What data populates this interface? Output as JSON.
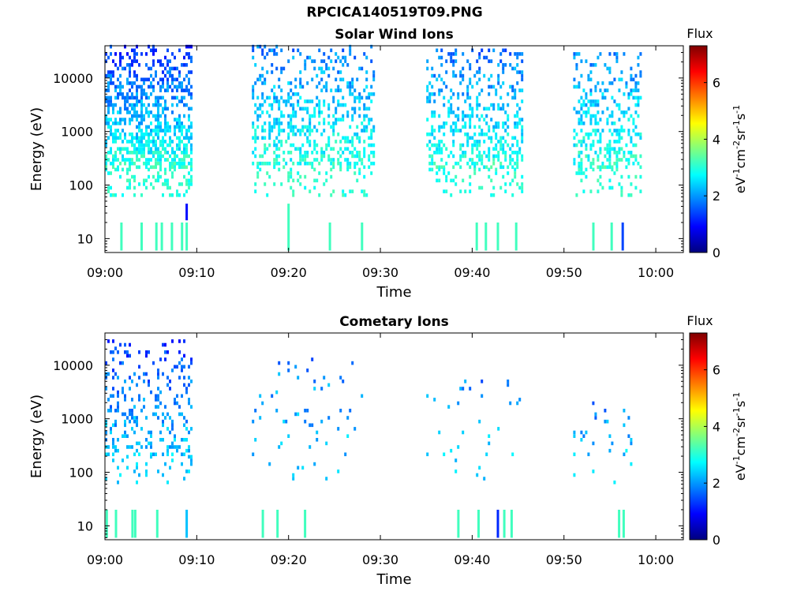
{
  "figure": {
    "title": "RPCICA140519T09.PNG"
  },
  "colorscale": {
    "name": "jet",
    "stops": [
      "#00007f",
      "#0000ff",
      "#007fff",
      "#00ffff",
      "#7fff7f",
      "#ffff00",
      "#ff7f00",
      "#ff0000",
      "#7f0000"
    ]
  },
  "chart_data": [
    {
      "type": "heatmap",
      "title": "Solar Wind Ions",
      "xlabel": "Time",
      "ylabel": "Energy (eV)",
      "y_scale": "log",
      "xlim": [
        "09:00",
        "10:03"
      ],
      "ylim": [
        5.5,
        40000
      ],
      "x_ticks": [
        "09:00",
        "09:10",
        "09:20",
        "09:30",
        "09:40",
        "09:50",
        "10:00"
      ],
      "y_ticks": [
        "10",
        "100",
        "1000",
        "10000"
      ],
      "colorbar": {
        "label_top": "Flux",
        "label": "eV-1cm-2sr-1s-1",
        "range": [
          0,
          7.3
        ],
        "ticks": [
          "0",
          "2",
          "4",
          "6"
        ]
      },
      "bursts": [
        {
          "start": "09:00",
          "end": "09:09",
          "max_energy": 38000,
          "high_flux": 1.2,
          "low_flux": 3.0,
          "fill": 0.65
        },
        {
          "start": "09:16",
          "end": "09:29",
          "max_energy": 36000,
          "high_flux": 1.8,
          "low_flux": 3.0,
          "fill": 0.38
        },
        {
          "start": "09:35",
          "end": "09:45",
          "max_energy": 32000,
          "high_flux": 1.7,
          "low_flux": 3.0,
          "fill": 0.4
        },
        {
          "start": "09:51",
          "end": "09:58",
          "max_energy": 30000,
          "high_flux": 1.8,
          "low_flux": 3.0,
          "fill": 0.4
        }
      ],
      "lines": [
        {
          "t": "09:01.8",
          "from": 6,
          "to": 20,
          "flux": 3.2
        },
        {
          "t": "09:04.0",
          "from": 6,
          "to": 20,
          "flux": 3.2
        },
        {
          "t": "09:05.6",
          "from": 6,
          "to": 20,
          "flux": 3.2
        },
        {
          "t": "09:06.2",
          "from": 6,
          "to": 20,
          "flux": 3.2
        },
        {
          "t": "09:07.3",
          "from": 6,
          "to": 20,
          "flux": 3.2
        },
        {
          "t": "09:08.4",
          "from": 6,
          "to": 20,
          "flux": 3.2
        },
        {
          "t": "09:08.9",
          "from": 6,
          "to": 20,
          "flux": 3.2
        },
        {
          "t": "09:08.9",
          "from": 22,
          "to": 45,
          "flux": 1.0
        },
        {
          "t": "09:20.0",
          "from": 6,
          "to": 45,
          "flux": 3.2
        },
        {
          "t": "09:24.5",
          "from": 6,
          "to": 20,
          "flux": 3.2
        },
        {
          "t": "09:28.0",
          "from": 6,
          "to": 20,
          "flux": 3.2
        },
        {
          "t": "09:40.5",
          "from": 6,
          "to": 20,
          "flux": 3.2
        },
        {
          "t": "09:41.5",
          "from": 6,
          "to": 20,
          "flux": 3.2
        },
        {
          "t": "09:42.8",
          "from": 6,
          "to": 20,
          "flux": 3.2
        },
        {
          "t": "09:44.8",
          "from": 6,
          "to": 20,
          "flux": 3.2
        },
        {
          "t": "09:53.2",
          "from": 6,
          "to": 20,
          "flux": 3.2
        },
        {
          "t": "09:55.2",
          "from": 6,
          "to": 20,
          "flux": 3.2
        },
        {
          "t": "09:56.4",
          "from": 6,
          "to": 20,
          "flux": 1.4
        }
      ]
    },
    {
      "type": "heatmap",
      "title": "Cometary Ions",
      "xlabel": "Time",
      "ylabel": "Energy (eV)",
      "y_scale": "log",
      "xlim": [
        "09:00",
        "10:03"
      ],
      "ylim": [
        5.5,
        40000
      ],
      "x_ticks": [
        "09:00",
        "09:10",
        "09:20",
        "09:30",
        "09:40",
        "09:50",
        "10:00"
      ],
      "y_ticks": [
        "10",
        "100",
        "1000",
        "10000"
      ],
      "colorbar": {
        "label_top": "Flux",
        "label": "eV-1cm-2sr-1s-1",
        "range": [
          0,
          7.3
        ],
        "ticks": [
          "0",
          "2",
          "4",
          "6"
        ]
      },
      "bursts": [
        {
          "start": "09:00",
          "end": "09:09",
          "max_energy": 30000,
          "high_flux": 1.3,
          "low_flux": 2.4,
          "fill": 0.3
        },
        {
          "start": "09:16",
          "end": "09:28",
          "max_energy": 12000,
          "high_flux": 1.8,
          "low_flux": 2.4,
          "fill": 0.07
        },
        {
          "start": "09:35",
          "end": "09:45",
          "max_energy": 6000,
          "high_flux": 1.8,
          "low_flux": 2.4,
          "fill": 0.05
        },
        {
          "start": "09:51",
          "end": "09:57",
          "max_energy": 2000,
          "high_flux": 1.8,
          "low_flux": 2.4,
          "fill": 0.08
        }
      ],
      "lines": [
        {
          "t": "09:00.2",
          "from": 6,
          "to": 20,
          "flux": 3.2
        },
        {
          "t": "09:01.2",
          "from": 6,
          "to": 20,
          "flux": 3.2
        },
        {
          "t": "09:03.0",
          "from": 6,
          "to": 20,
          "flux": 3.2
        },
        {
          "t": "09:03.3",
          "from": 6,
          "to": 20,
          "flux": 3.2
        },
        {
          "t": "09:05.7",
          "from": 6,
          "to": 20,
          "flux": 3.2
        },
        {
          "t": "09:08.9",
          "from": 6,
          "to": 20,
          "flux": 2.3
        },
        {
          "t": "09:17.2",
          "from": 6,
          "to": 20,
          "flux": 3.2
        },
        {
          "t": "09:18.8",
          "from": 6,
          "to": 20,
          "flux": 3.2
        },
        {
          "t": "09:21.8",
          "from": 6,
          "to": 20,
          "flux": 3.2
        },
        {
          "t": "09:38.5",
          "from": 6,
          "to": 20,
          "flux": 3.2
        },
        {
          "t": "09:40.7",
          "from": 6,
          "to": 20,
          "flux": 3.2
        },
        {
          "t": "09:42.8",
          "from": 6,
          "to": 20,
          "flux": 1.2
        },
        {
          "t": "09:43.5",
          "from": 6,
          "to": 20,
          "flux": 3.2
        },
        {
          "t": "09:44.3",
          "from": 6,
          "to": 20,
          "flux": 3.2
        },
        {
          "t": "09:56.0",
          "from": 6,
          "to": 20,
          "flux": 3.2
        },
        {
          "t": "09:56.5",
          "from": 6,
          "to": 20,
          "flux": 3.2
        }
      ]
    }
  ]
}
